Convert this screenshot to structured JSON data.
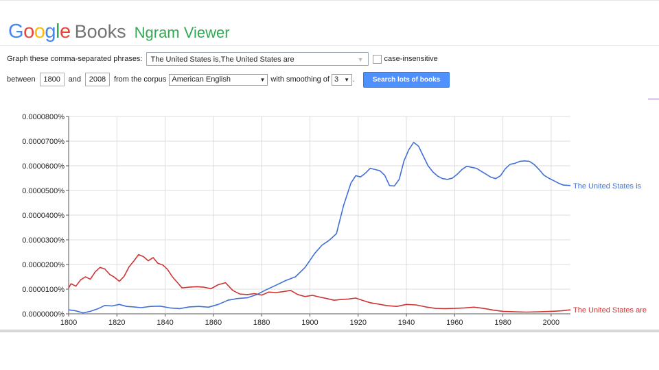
{
  "header": {
    "logo_letters": [
      {
        "ch": "G",
        "color": "#4285f4"
      },
      {
        "ch": "o",
        "color": "#ea4335"
      },
      {
        "ch": "o",
        "color": "#fbbc05"
      },
      {
        "ch": "g",
        "color": "#4285f4"
      },
      {
        "ch": "l",
        "color": "#34a853"
      },
      {
        "ch": "e",
        "color": "#ea4335"
      }
    ],
    "books": "Books",
    "ngram": "Ngram Viewer"
  },
  "form": {
    "phrases_label": "Graph these comma-separated phrases:",
    "phrases_value": "The United States is,The United States are",
    "case_label": "case-insensitive",
    "between_label": "between",
    "year_start": "1800",
    "and_label": "and",
    "year_end": "2008",
    "corpus_label": "from the corpus",
    "corpus_value": "American English",
    "smoothing_label": "with smoothing of",
    "smoothing_value": "3",
    "period": ".",
    "search_label": "Search lots of books"
  },
  "colors": {
    "series_is": "#3f6fd6",
    "series_are": "#cc3333",
    "grid": "#dcdcdc",
    "button": "#4d90fe"
  },
  "chart_data": {
    "type": "line",
    "xlim": [
      1800,
      2008
    ],
    "ylim": [
      0,
      8e-07
    ],
    "y_ticks": [
      "0.0000000%",
      "0.0000100%",
      "0.0000200%",
      "0.0000300%",
      "0.0000400%",
      "0.0000500%",
      "0.0000600%",
      "0.0000700%",
      "0.0000800%"
    ],
    "x_ticks": [
      "1800",
      "1820",
      "1840",
      "1860",
      "1880",
      "1900",
      "1920",
      "1940",
      "1960",
      "1980",
      "2000"
    ],
    "series": [
      {
        "name": "The United States is",
        "points": [
          [
            1800,
            0.016
          ],
          [
            1803,
            0.012
          ],
          [
            1806,
            0.004
          ],
          [
            1809,
            0.01
          ],
          [
            1812,
            0.02
          ],
          [
            1815,
            0.034
          ],
          [
            1818,
            0.032
          ],
          [
            1821,
            0.038
          ],
          [
            1824,
            0.03
          ],
          [
            1827,
            0.028
          ],
          [
            1830,
            0.025
          ],
          [
            1834,
            0.03
          ],
          [
            1838,
            0.031
          ],
          [
            1842,
            0.024
          ],
          [
            1846,
            0.021
          ],
          [
            1850,
            0.028
          ],
          [
            1854,
            0.03
          ],
          [
            1858,
            0.027
          ],
          [
            1862,
            0.038
          ],
          [
            1866,
            0.055
          ],
          [
            1870,
            0.062
          ],
          [
            1874,
            0.065
          ],
          [
            1878,
            0.078
          ],
          [
            1882,
            0.098
          ],
          [
            1886,
            0.116
          ],
          [
            1890,
            0.135
          ],
          [
            1894,
            0.15
          ],
          [
            1898,
            0.188
          ],
          [
            1902,
            0.245
          ],
          [
            1905,
            0.278
          ],
          [
            1908,
            0.298
          ],
          [
            1911,
            0.325
          ],
          [
            1914,
            0.44
          ],
          [
            1917,
            0.53
          ],
          [
            1919,
            0.56
          ],
          [
            1921,
            0.555
          ],
          [
            1923,
            0.57
          ],
          [
            1925,
            0.59
          ],
          [
            1927,
            0.585
          ],
          [
            1929,
            0.58
          ],
          [
            1931,
            0.562
          ],
          [
            1933,
            0.52
          ],
          [
            1935,
            0.518
          ],
          [
            1937,
            0.545
          ],
          [
            1939,
            0.62
          ],
          [
            1941,
            0.665
          ],
          [
            1943,
            0.695
          ],
          [
            1945,
            0.68
          ],
          [
            1947,
            0.64
          ],
          [
            1949,
            0.6
          ],
          [
            1951,
            0.575
          ],
          [
            1953,
            0.558
          ],
          [
            1955,
            0.548
          ],
          [
            1957,
            0.545
          ],
          [
            1959,
            0.55
          ],
          [
            1961,
            0.565
          ],
          [
            1963,
            0.585
          ],
          [
            1965,
            0.598
          ],
          [
            1967,
            0.594
          ],
          [
            1969,
            0.59
          ],
          [
            1971,
            0.578
          ],
          [
            1973,
            0.566
          ],
          [
            1975,
            0.554
          ],
          [
            1977,
            0.548
          ],
          [
            1979,
            0.56
          ],
          [
            1981,
            0.588
          ],
          [
            1983,
            0.606
          ],
          [
            1985,
            0.61
          ],
          [
            1987,
            0.618
          ],
          [
            1989,
            0.62
          ],
          [
            1991,
            0.618
          ],
          [
            1993,
            0.605
          ],
          [
            1995,
            0.585
          ],
          [
            1997,
            0.562
          ],
          [
            1999,
            0.55
          ],
          [
            2001,
            0.54
          ],
          [
            2003,
            0.53
          ],
          [
            2005,
            0.522
          ],
          [
            2008,
            0.52
          ]
        ]
      },
      {
        "name": "The United States are",
        "points": [
          [
            1800,
            0.105
          ],
          [
            1801,
            0.122
          ],
          [
            1803,
            0.112
          ],
          [
            1805,
            0.138
          ],
          [
            1807,
            0.15
          ],
          [
            1809,
            0.14
          ],
          [
            1811,
            0.17
          ],
          [
            1813,
            0.188
          ],
          [
            1815,
            0.182
          ],
          [
            1817,
            0.16
          ],
          [
            1819,
            0.148
          ],
          [
            1821,
            0.132
          ],
          [
            1823,
            0.152
          ],
          [
            1825,
            0.19
          ],
          [
            1827,
            0.214
          ],
          [
            1829,
            0.24
          ],
          [
            1831,
            0.232
          ],
          [
            1833,
            0.215
          ],
          [
            1835,
            0.228
          ],
          [
            1837,
            0.205
          ],
          [
            1839,
            0.198
          ],
          [
            1841,
            0.18
          ],
          [
            1843,
            0.15
          ],
          [
            1845,
            0.128
          ],
          [
            1847,
            0.105
          ],
          [
            1850,
            0.108
          ],
          [
            1853,
            0.11
          ],
          [
            1856,
            0.108
          ],
          [
            1859,
            0.102
          ],
          [
            1862,
            0.118
          ],
          [
            1865,
            0.126
          ],
          [
            1868,
            0.095
          ],
          [
            1871,
            0.08
          ],
          [
            1874,
            0.078
          ],
          [
            1877,
            0.082
          ],
          [
            1880,
            0.076
          ],
          [
            1883,
            0.088
          ],
          [
            1886,
            0.086
          ],
          [
            1889,
            0.09
          ],
          [
            1892,
            0.095
          ],
          [
            1895,
            0.078
          ],
          [
            1898,
            0.07
          ],
          [
            1901,
            0.075
          ],
          [
            1904,
            0.068
          ],
          [
            1907,
            0.062
          ],
          [
            1910,
            0.055
          ],
          [
            1913,
            0.058
          ],
          [
            1916,
            0.06
          ],
          [
            1919,
            0.064
          ],
          [
            1922,
            0.054
          ],
          [
            1925,
            0.045
          ],
          [
            1928,
            0.04
          ],
          [
            1932,
            0.033
          ],
          [
            1936,
            0.03
          ],
          [
            1940,
            0.038
          ],
          [
            1944,
            0.036
          ],
          [
            1948,
            0.028
          ],
          [
            1952,
            0.022
          ],
          [
            1956,
            0.021
          ],
          [
            1960,
            0.022
          ],
          [
            1964,
            0.024
          ],
          [
            1968,
            0.027
          ],
          [
            1972,
            0.022
          ],
          [
            1976,
            0.015
          ],
          [
            1980,
            0.01
          ],
          [
            1985,
            0.008
          ],
          [
            1990,
            0.007
          ],
          [
            1995,
            0.008
          ],
          [
            2000,
            0.01
          ],
          [
            2004,
            0.012
          ],
          [
            2008,
            0.016
          ]
        ]
      }
    ]
  }
}
